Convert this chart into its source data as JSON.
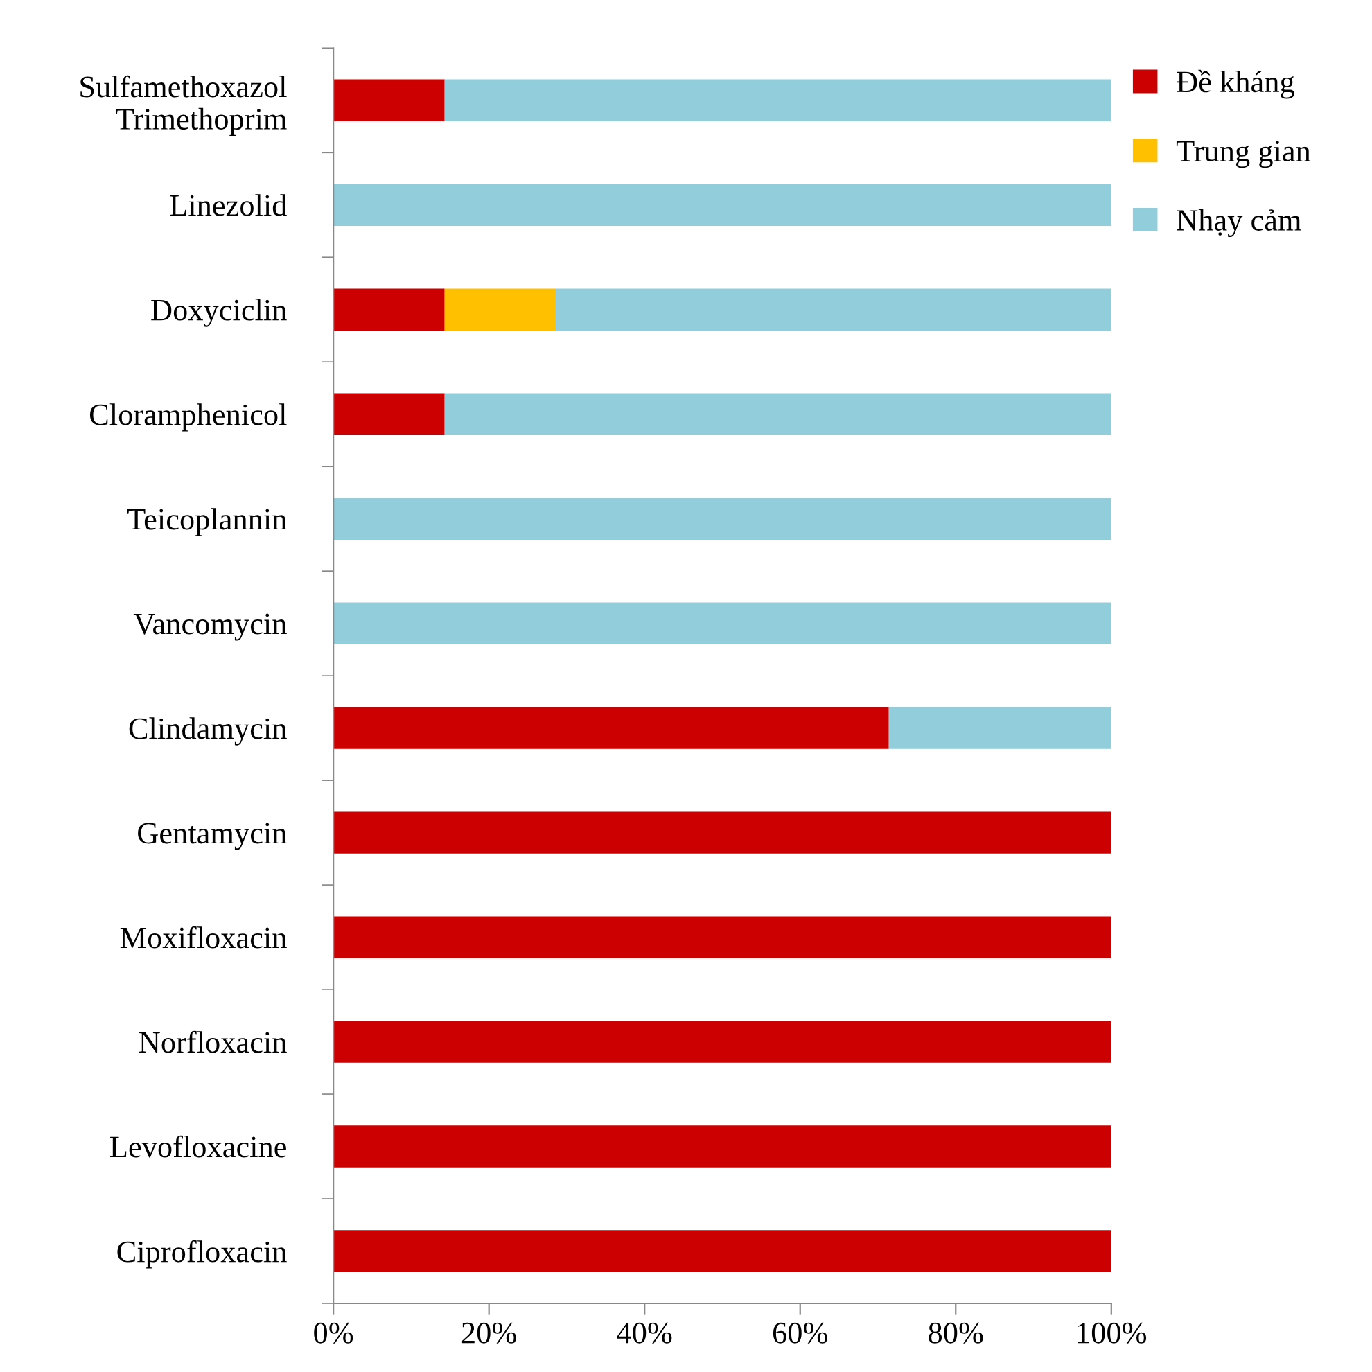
{
  "chart_data": {
    "type": "bar",
    "orientation": "horizontal",
    "stacked": true,
    "categories": [
      "Sulfamethoxazol\nTrimethoprim",
      "Linezolid",
      "Doxyciclin",
      "Cloramphenicol",
      "Teicoplannin",
      "Vancomycin",
      "Clindamycin",
      "Gentamycin",
      "Moxifloxacin",
      "Norfloxacin",
      "Levofloxacine",
      "Ciprofloxacin"
    ],
    "series": [
      {
        "name": "Đề kháng",
        "color": "#cc0000",
        "values": [
          14.3,
          0,
          14.3,
          14.3,
          0,
          0,
          71.4,
          100,
          100,
          100,
          100,
          100
        ]
      },
      {
        "name": "Trung gian",
        "color": "#ffc000",
        "values": [
          0,
          0,
          14.3,
          0,
          0,
          0,
          0,
          0,
          0,
          0,
          0,
          0
        ]
      },
      {
        "name": "Nhạy cảm",
        "color": "#92cddc",
        "values": [
          85.7,
          100,
          71.4,
          85.7,
          100,
          100,
          28.6,
          0,
          0,
          0,
          0,
          0
        ]
      }
    ],
    "xlim": [
      0,
      100
    ],
    "xticks": [
      {
        "value": 0,
        "label": "0%"
      },
      {
        "value": 20,
        "label": "20%"
      },
      {
        "value": 40,
        "label": "40%"
      },
      {
        "value": 60,
        "label": "60%"
      },
      {
        "value": 80,
        "label": "80%"
      },
      {
        "value": 100,
        "label": "100%"
      }
    ],
    "grid": false,
    "legend": "right"
  }
}
